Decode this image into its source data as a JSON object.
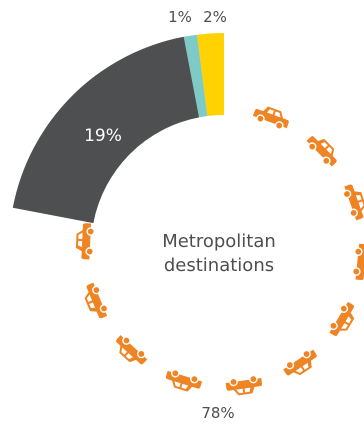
{
  "chart_data": {
    "type": "pie",
    "title": "Metropolitan destinations",
    "title_lines": [
      "Metropolitan",
      "destinations"
    ],
    "slices": [
      {
        "label": "19%",
        "value": 19,
        "color": "#4e4f51",
        "style": "solid"
      },
      {
        "label": "1%",
        "value": 1,
        "color": "#7ecac6",
        "style": "solid"
      },
      {
        "label": "2%",
        "value": 2,
        "color": "#ffd200",
        "style": "solid"
      },
      {
        "label": "78%",
        "value": 78,
        "color": "#ee8424",
        "style": "car-icons"
      }
    ],
    "icon": "car-icon"
  }
}
